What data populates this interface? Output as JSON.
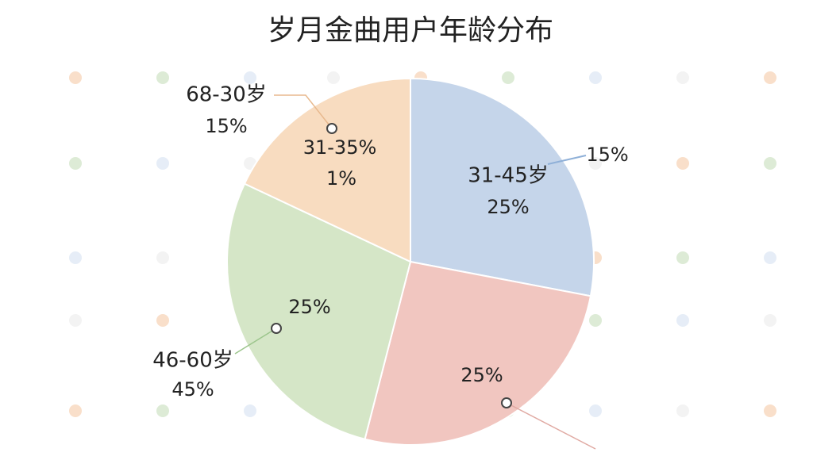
{
  "chart_data": {
    "type": "pie",
    "title": "岁月金曲用户年龄分布",
    "categories": [
      "31-45岁",
      null,
      "46-60岁",
      "68-30岁"
    ],
    "values": [
      28,
      26,
      28,
      18
    ],
    "colors": [
      "#c5d5ea",
      "#f1c6c0",
      "#d5e6c7",
      "#f8dcc0"
    ],
    "annotations": [
      "15%",
      "31-35%",
      "1%",
      "15%",
      "25%",
      "25%",
      "45%",
      "25%"
    ]
  }
}
